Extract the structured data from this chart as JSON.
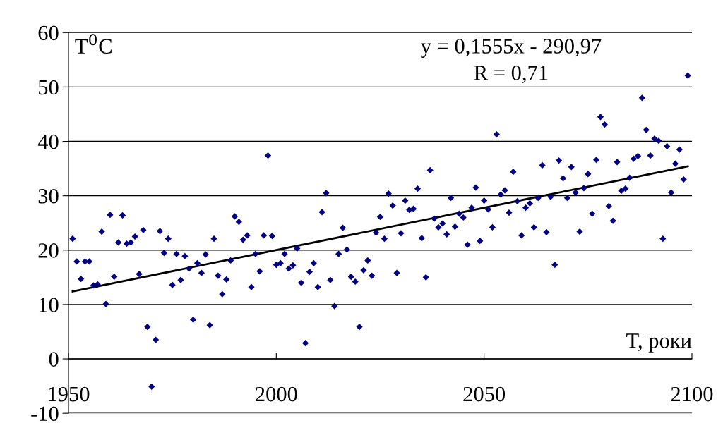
{
  "chart_data": {
    "type": "scatter",
    "ylabel": "T$^{0}$C",
    "xlabel": "T, роки",
    "annotations": [
      "y = 0,1555x - 290,97",
      "R = 0,71"
    ],
    "xlim": [
      1950,
      2100
    ],
    "xticks": [
      1950,
      2000,
      2050,
      2100
    ],
    "ylim": [
      -10,
      60
    ],
    "yticks": [
      -10,
      0,
      10,
      20,
      30,
      40,
      50,
      60
    ],
    "grid": "y",
    "marker": "diamond",
    "series": [
      {
        "color": "#000080",
        "x": [
          1951,
          1952,
          1953,
          1954,
          1955,
          1956,
          1957,
          1958,
          1959,
          1960,
          1961,
          1962,
          1963,
          1964,
          1965,
          1966,
          1967,
          1968,
          1969,
          1970,
          1971,
          1972,
          1973,
          1974,
          1975,
          1976,
          1977,
          1978,
          1979,
          1980,
          1981,
          1982,
          1983,
          1984,
          1985,
          1986,
          1987,
          1988,
          1989,
          1990,
          1991,
          1992,
          1993,
          1994,
          1995,
          1996,
          1997,
          1998,
          1999,
          2000,
          2001,
          2002,
          2003,
          2004,
          2005,
          2006,
          2007,
          2008,
          2009,
          2010,
          2011,
          2012,
          2013,
          2014,
          2015,
          2016,
          2017,
          2018,
          2019,
          2020,
          2021,
          2022,
          2023,
          2024,
          2025,
          2026,
          2027,
          2028,
          2029,
          2030,
          2031,
          2032,
          2033,
          2034,
          2035,
          2036,
          2037,
          2038,
          2039,
          2040,
          2041,
          2042,
          2043,
          2044,
          2045,
          2046,
          2047,
          2048,
          2049,
          2050,
          2051,
          2052,
          2053,
          2054,
          2055,
          2056,
          2057,
          2058,
          2059,
          2060,
          2061,
          2062,
          2063,
          2064,
          2065,
          2066,
          2067,
          2068,
          2069,
          2070,
          2071,
          2072,
          2073,
          2074,
          2075,
          2076,
          2077,
          2078,
          2079,
          2080,
          2081,
          2082,
          2083,
          2084,
          2085,
          2086,
          2087,
          2088,
          2089,
          2090,
          2091,
          2092,
          2093,
          2094,
          2095,
          2096,
          2097,
          2098,
          2099
        ],
        "values": [
          22.1,
          17.9,
          14.7,
          17.9,
          17.9,
          13.5,
          13.7,
          23.4,
          10.1,
          26.5,
          15.1,
          21.4,
          26.4,
          21.2,
          21.4,
          22.5,
          15.6,
          23.7,
          5.9,
          -5.1,
          3.5,
          23.5,
          19.5,
          22.1,
          13.6,
          19.3,
          14.5,
          18.9,
          16.6,
          7.2,
          17.6,
          15.8,
          19.2,
          6.2,
          22.1,
          15.3,
          11.9,
          14.6,
          18.1,
          26.2,
          25.2,
          21.9,
          22.7,
          13.2,
          19.3,
          16.1,
          22.7,
          37.4,
          22.6,
          17.3,
          17.6,
          19.3,
          16.6,
          17.2,
          20.3,
          14.0,
          2.9,
          16.0,
          17.6,
          13.2,
          27.0,
          30.5,
          14.5,
          9.7,
          19.3,
          24.1,
          20.1,
          15.1,
          14.2,
          5.9,
          16.3,
          18.1,
          15.3,
          23.2,
          26.1,
          22.1,
          30.4,
          28.2,
          15.8,
          23.1,
          29.1,
          27.4,
          27.6,
          31.3,
          22.2,
          15.0,
          34.7,
          25.8,
          24.2,
          24.9,
          22.9,
          29.6,
          24.3,
          26.7,
          26.0,
          21.0,
          27.8,
          31.5,
          21.7,
          29.1,
          27.5,
          24.2,
          41.3,
          30.2,
          31.0,
          26.9,
          34.4,
          29.0,
          22.7,
          27.8,
          28.6,
          24.2,
          29.6,
          35.6,
          23.3,
          29.8,
          17.3,
          36.5,
          33.2,
          29.6,
          35.3,
          30.6,
          23.4,
          31.4,
          34.0,
          26.7,
          36.6,
          44.5,
          43.1,
          28.1,
          25.4,
          36.2,
          30.9,
          31.3,
          33.3,
          36.8,
          37.3,
          48.0,
          42.1,
          37.4,
          40.5,
          40.1,
          22.1,
          39.1,
          30.6,
          35.9,
          38.5,
          33.0,
          52.1
        ]
      },
      {
        "type": "line",
        "color": "#000000",
        "marker": "none",
        "x": [
          1951,
          2099
        ],
        "values": [
          12.4,
          35.4
        ]
      }
    ]
  }
}
